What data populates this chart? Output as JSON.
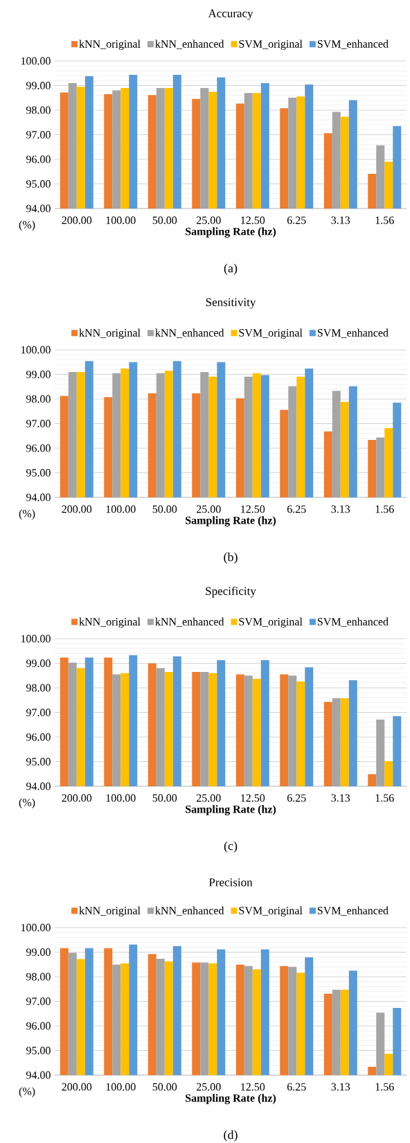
{
  "chart_data": [
    {
      "type": "bar",
      "title": "Accuracy",
      "xlabel": "Sampling Rate (hz)",
      "ylabel": "(%)",
      "annotations": [
        "(a)"
      ],
      "categories": [
        "200.00",
        "100.00",
        "50.00",
        "25.00",
        "12.50",
        "6.25",
        "3.13",
        "1.56"
      ],
      "series": [
        {
          "name": "kNN_original",
          "color": "#ed7d31",
          "values": [
            98.72,
            98.65,
            98.61,
            98.46,
            98.27,
            98.08,
            97.06,
            95.41
          ]
        },
        {
          "name": "kNN_enhanced",
          "color": "#a5a5a5",
          "values": [
            99.1,
            98.8,
            98.9,
            98.9,
            98.7,
            98.51,
            97.93,
            96.57
          ]
        },
        {
          "name": "SVM_original",
          "color": "#ffc000",
          "values": [
            98.95,
            98.9,
            98.9,
            98.75,
            98.7,
            98.56,
            97.73,
            95.9
          ]
        },
        {
          "name": "SVM_enhanced",
          "color": "#5b9bd5",
          "values": [
            99.38,
            99.44,
            99.44,
            99.33,
            99.1,
            99.04,
            98.41,
            97.35
          ]
        }
      ],
      "ylim": [
        94,
        100
      ],
      "yticks": [
        {
          "value": 94,
          "label": "94.00"
        },
        {
          "value": 95,
          "label": "95.00"
        },
        {
          "value": 96,
          "label": "96.00"
        },
        {
          "value": 97,
          "label": "97.00"
        },
        {
          "value": 98,
          "label": "98.00"
        },
        {
          "value": 99,
          "label": "99.00"
        },
        {
          "value": 100,
          "label": "100.00"
        }
      ],
      "grid": "y",
      "legend": "top"
    },
    {
      "type": "bar",
      "title": "Sensitivity",
      "xlabel": "Sampling Rate (hz)",
      "ylabel": "(%)",
      "annotations": [
        "(b)"
      ],
      "categories": [
        "200.00",
        "100.00",
        "50.00",
        "25.00",
        "12.50",
        "6.25",
        "3.13",
        "1.56"
      ],
      "series": [
        {
          "name": "kNN_original",
          "color": "#ed7d31",
          "values": [
            98.13,
            98.08,
            98.23,
            98.23,
            98.03,
            97.56,
            96.68,
            96.34
          ]
        },
        {
          "name": "kNN_enhanced",
          "color": "#a5a5a5",
          "values": [
            99.1,
            99.05,
            99.05,
            99.1,
            98.91,
            98.52,
            98.33,
            96.44
          ]
        },
        {
          "name": "SVM_original",
          "color": "#ffc000",
          "values": [
            99.1,
            99.24,
            99.15,
            98.91,
            99.05,
            98.91,
            97.88,
            96.82
          ]
        },
        {
          "name": "SVM_enhanced",
          "color": "#5b9bd5",
          "values": [
            99.54,
            99.5,
            99.54,
            99.5,
            98.97,
            99.24,
            98.52,
            97.85
          ]
        }
      ],
      "ylim": [
        94,
        100
      ],
      "yticks": [
        {
          "value": 94,
          "label": "94.00"
        },
        {
          "value": 95,
          "label": "95.00"
        },
        {
          "value": 96,
          "label": "96.00"
        },
        {
          "value": 97,
          "label": "97.00"
        },
        {
          "value": 98,
          "label": "98.00"
        },
        {
          "value": 99,
          "label": "99.00"
        },
        {
          "value": 100,
          "label": "100.00"
        }
      ],
      "grid": "y",
      "legend": "top"
    },
    {
      "type": "bar",
      "title": "Specificity",
      "xlabel": "Sampling Rate (hz)",
      "ylabel": "(%)",
      "annotations": [
        "(c)"
      ],
      "categories": [
        "200.00",
        "100.00",
        "50.00",
        "25.00",
        "12.50",
        "6.25",
        "3.13",
        "1.56"
      ],
      "series": [
        {
          "name": "kNN_original",
          "color": "#ed7d31",
          "values": [
            99.23,
            99.23,
            98.99,
            98.65,
            98.55,
            98.55,
            97.43,
            94.49
          ]
        },
        {
          "name": "kNN_enhanced",
          "color": "#a5a5a5",
          "values": [
            99.03,
            98.55,
            98.8,
            98.65,
            98.5,
            98.5,
            97.58,
            96.71
          ]
        },
        {
          "name": "SVM_original",
          "color": "#ffc000",
          "values": [
            98.8,
            98.6,
            98.65,
            98.6,
            98.37,
            98.26,
            97.58,
            95.02
          ]
        },
        {
          "name": "SVM_enhanced",
          "color": "#5b9bd5",
          "values": [
            99.23,
            99.33,
            99.28,
            99.13,
            99.13,
            98.84,
            98.31,
            96.85
          ]
        }
      ],
      "ylim": [
        94,
        100
      ],
      "yticks": [
        {
          "value": 94,
          "label": "94.00"
        },
        {
          "value": 95,
          "label": "95.00"
        },
        {
          "value": 96,
          "label": "96.00"
        },
        {
          "value": 97,
          "label": "97.00"
        },
        {
          "value": 98,
          "label": "98.00"
        },
        {
          "value": 99,
          "label": "99.00"
        },
        {
          "value": 100,
          "label": "100.00"
        }
      ],
      "grid": "y",
      "legend": "top"
    },
    {
      "type": "bar",
      "title": "Precision",
      "xlabel": "Sampling Rate (hz)",
      "ylabel": "(%)",
      "annotations": [
        "(d)"
      ],
      "categories": [
        "200.00",
        "100.00",
        "50.00",
        "25.00",
        "12.50",
        "6.25",
        "3.13",
        "1.56"
      ],
      "series": [
        {
          "name": "kNN_original",
          "color": "#ed7d31",
          "values": [
            99.16,
            99.16,
            98.92,
            98.58,
            98.49,
            98.44,
            97.31,
            94.34
          ]
        },
        {
          "name": "kNN_enhanced",
          "color": "#a5a5a5",
          "values": [
            98.97,
            98.49,
            98.73,
            98.58,
            98.44,
            98.4,
            97.47,
            96.54
          ]
        },
        {
          "name": "SVM_original",
          "color": "#ffc000",
          "values": [
            98.72,
            98.54,
            98.63,
            98.54,
            98.3,
            98.16,
            97.47,
            94.87
          ]
        },
        {
          "name": "SVM_enhanced",
          "color": "#5b9bd5",
          "values": [
            99.16,
            99.31,
            99.25,
            99.11,
            99.11,
            98.79,
            98.25,
            96.73
          ]
        }
      ],
      "ylim": [
        94,
        100
      ],
      "yticks": [
        {
          "value": 94,
          "label": "94.00"
        },
        {
          "value": 95,
          "label": "95.00"
        },
        {
          "value": 96,
          "label": "96.00"
        },
        {
          "value": 97,
          "label": "97.00"
        },
        {
          "value": 98,
          "label": "98.00"
        },
        {
          "value": 99,
          "label": "99.00"
        },
        {
          "value": 100,
          "label": "100.00"
        }
      ],
      "grid": "y",
      "legend": "top"
    }
  ]
}
